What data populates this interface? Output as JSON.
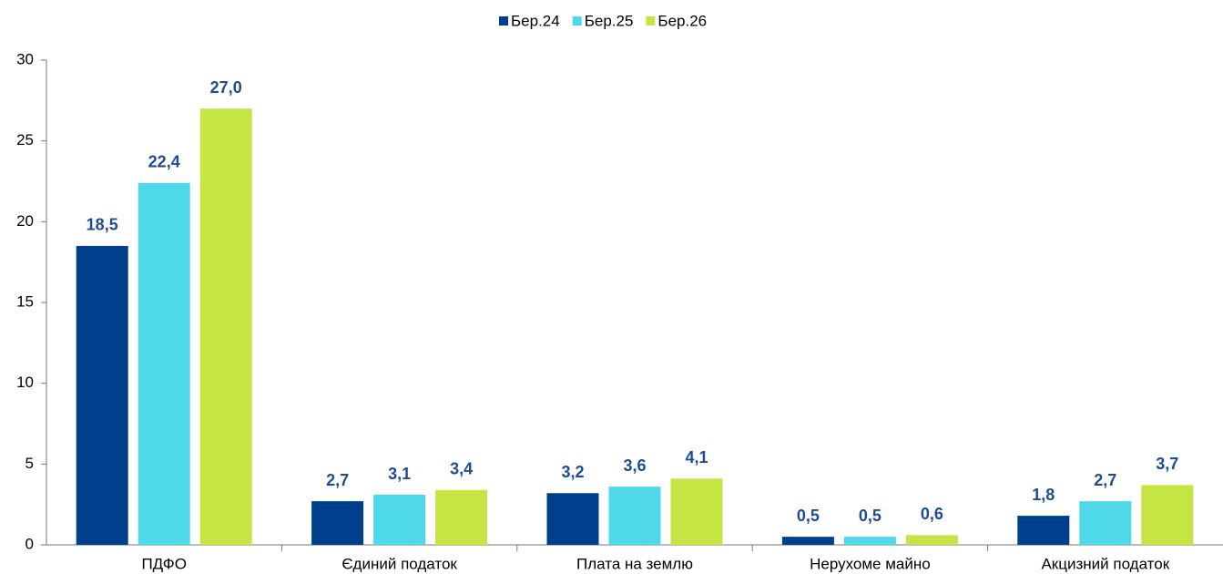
{
  "chart_data": {
    "type": "bar",
    "categories": [
      "ПДФО",
      "Єдиний податок",
      "Плата на землю",
      "Нерухоме майно",
      "Акцизний податок"
    ],
    "series": [
      {
        "name": "Бер.24",
        "color": "#003f8c",
        "values": [
          18.5,
          2.7,
          3.2,
          0.5,
          1.8
        ],
        "value_labels": [
          "18,5",
          "2,7",
          "3,2",
          "0,5",
          "1,8"
        ]
      },
      {
        "name": "Бер.25",
        "color": "#4fd9e8",
        "values": [
          22.4,
          3.1,
          3.6,
          0.5,
          2.7
        ],
        "value_labels": [
          "22,4",
          "3,1",
          "3,6",
          "0,5",
          "2,7"
        ]
      },
      {
        "name": "Бер.26",
        "color": "#c4e544",
        "values": [
          27.0,
          3.4,
          4.1,
          0.6,
          3.7
        ],
        "value_labels": [
          "27,0",
          "3,4",
          "4,1",
          "0,6",
          "3,7"
        ]
      }
    ],
    "ylim": [
      0,
      30
    ],
    "yticks": [
      0,
      5,
      10,
      15,
      20,
      25,
      30
    ],
    "grid": false,
    "legend": "top"
  }
}
